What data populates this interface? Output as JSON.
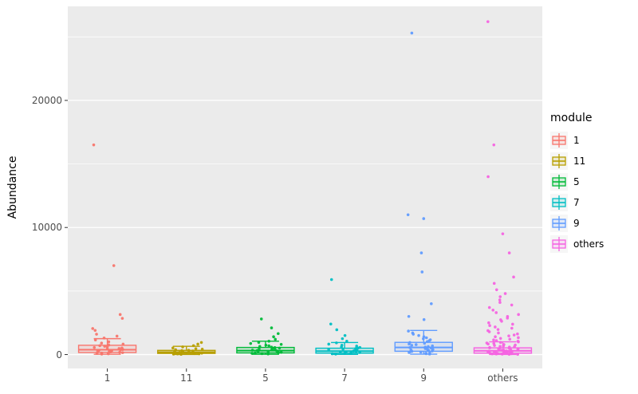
{
  "chart_data": {
    "type": "boxplot",
    "title": "",
    "xlabel": "",
    "ylabel": "Abundance",
    "ylim": [
      0,
      27400
    ],
    "yticks": [
      {
        "value": 0,
        "label": "0"
      },
      {
        "value": 10000,
        "label": "10000"
      },
      {
        "value": 20000,
        "label": "20000"
      }
    ],
    "yticks_minor": [
      5000,
      15000,
      25000
    ],
    "categories": [
      "1",
      "11",
      "5",
      "7",
      "9",
      "others"
    ],
    "legend": {
      "title": "module",
      "position": "right",
      "entries": [
        {
          "label": "1",
          "color": "#F8766D"
        },
        {
          "label": "11",
          "color": "#B79F00"
        },
        {
          "label": "5",
          "color": "#00BA38"
        },
        {
          "label": "7",
          "color": "#00BFC4"
        },
        {
          "label": "9",
          "color": "#619CFF"
        },
        {
          "label": "others",
          "color": "#F564E2"
        }
      ]
    },
    "colors": {
      "panel_background": "#EBEBEB",
      "gridline": "#FFFFFF",
      "tick_text": "#4D4D4D",
      "tick_mark": "#333333"
    },
    "series": [
      {
        "name": "1",
        "color": "#F8766D",
        "box": {
          "whisker_low": 25,
          "q1": 160,
          "median": 380,
          "q3": 730,
          "whisker_high": 1250
        },
        "points": [
          16500,
          7000,
          3150,
          2850,
          2050,
          1900,
          1600,
          1450,
          1300,
          1150,
          1000,
          900,
          820,
          750,
          700,
          650,
          600,
          560,
          520,
          480,
          440,
          400,
          360,
          330,
          300,
          270,
          240,
          210,
          180,
          150,
          120,
          90,
          60,
          40
        ]
      },
      {
        "name": "11",
        "color": "#B79F00",
        "box": {
          "whisker_low": 10,
          "q1": 90,
          "median": 190,
          "q3": 330,
          "whisker_high": 650
        },
        "points": [
          950,
          820,
          700,
          600,
          520,
          460,
          420,
          380,
          340,
          310,
          280,
          250,
          230,
          210,
          190,
          170,
          150,
          130,
          110,
          95,
          80,
          65,
          50,
          35,
          20
        ]
      },
      {
        "name": "5",
        "color": "#00BA38",
        "box": {
          "whisker_low": 20,
          "q1": 130,
          "median": 310,
          "q3": 560,
          "whisker_high": 1050
        },
        "points": [
          2800,
          2100,
          1650,
          1400,
          1200,
          1050,
          950,
          870,
          800,
          740,
          690,
          640,
          590,
          550,
          510,
          470,
          440,
          410,
          380,
          350,
          320,
          290,
          260,
          230,
          200,
          175,
          150,
          125,
          100,
          75,
          50
        ]
      },
      {
        "name": "7",
        "color": "#00BFC4",
        "box": {
          "whisker_low": 15,
          "q1": 110,
          "median": 270,
          "q3": 500,
          "whisker_high": 950
        },
        "points": [
          5900,
          2400,
          1950,
          1500,
          1250,
          1050,
          920,
          820,
          740,
          670,
          610,
          560,
          510,
          470,
          430,
          390,
          360,
          330,
          300,
          270,
          240,
          210,
          185,
          160,
          135,
          110,
          85,
          60,
          40
        ]
      },
      {
        "name": "9",
        "color": "#619CFF",
        "box": {
          "whisker_low": 30,
          "q1": 260,
          "median": 560,
          "q3": 960,
          "whisker_high": 1900
        },
        "points": [
          25300,
          11000,
          10700,
          8000,
          6500,
          4000,
          3000,
          2750,
          1850,
          1700,
          1600,
          1500,
          1400,
          1320,
          1240,
          1160,
          1090,
          1020,
          950,
          890,
          830,
          780,
          730,
          680,
          630,
          590,
          550,
          510,
          470,
          430,
          400,
          370,
          340,
          310,
          280,
          250,
          220,
          190,
          160,
          130,
          100,
          70,
          45
        ]
      },
      {
        "name": "others",
        "color": "#F564E2",
        "box": {
          "whisker_low": 10,
          "q1": 105,
          "median": 290,
          "q3": 530,
          "whisker_high": 1000
        },
        "points": [
          26200,
          16500,
          14000,
          9500,
          8000,
          6100,
          5600,
          5100,
          4800,
          4550,
          4300,
          4100,
          3900,
          3700,
          3500,
          3300,
          3150,
          3000,
          2870,
          2740,
          2620,
          2500,
          2390,
          2280,
          2170,
          2070,
          1970,
          1880,
          1790,
          1700,
          1620,
          1540,
          1470,
          1400,
          1330,
          1270,
          1210,
          1150,
          1100,
          1050,
          1000,
          955,
          910,
          870,
          830,
          790,
          750,
          715,
          680,
          645,
          615,
          585,
          555,
          525,
          500,
          475,
          450,
          425,
          400,
          380,
          360,
          340,
          320,
          300,
          280,
          262,
          245,
          228,
          212,
          196,
          180,
          165,
          150,
          136,
          122,
          108,
          95,
          82,
          70,
          58,
          46,
          35,
          25,
          15
        ]
      }
    ]
  }
}
